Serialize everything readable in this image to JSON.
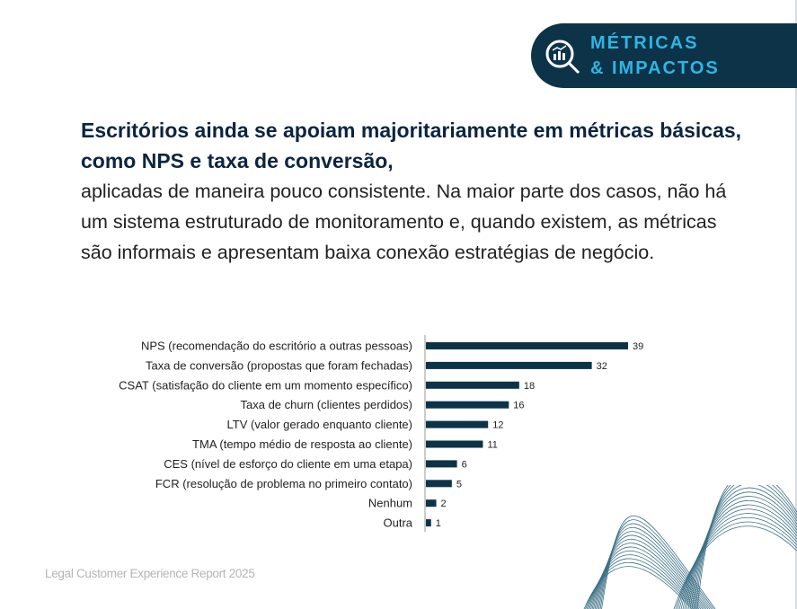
{
  "badge": {
    "line1": "MÉTRICAS",
    "line2": "& IMPACTOS",
    "icon": "magnifier-chart-icon"
  },
  "headline": {
    "bold": "Escritórios ainda se apoiam majoritariamente em métricas básicas, como NPS e taxa de conversão,",
    "regular": "aplicadas de maneira pouco consistente. Na maior parte dos casos, não há um sistema estruturado de monitoramento e, quando existem, as métricas são informais e apresentam baixa conexão estratégias de negócio."
  },
  "footer": "Legal Customer Experience Report 2025",
  "colors": {
    "bar": "#0d3349",
    "accent": "#2fb5e4"
  },
  "chart_data": {
    "type": "bar",
    "orientation": "horizontal",
    "categories": [
      "NPS (recomendação do escritório a outras pessoas)",
      "Taxa de conversão (propostas que foram fechadas)",
      "CSAT (satisfação do cliente em um momento específico)",
      "Taxa de churn (clientes perdidos)",
      "LTV (valor gerado enquanto cliente)",
      "TMA (tempo médio de resposta ao cliente)",
      "CES (nível de esforço do cliente em uma etapa)",
      "FCR (resolução de problema no primeiro contato)",
      "Nenhum",
      "Outra"
    ],
    "values": [
      39,
      32,
      18,
      16,
      12,
      11,
      6,
      5,
      2,
      1
    ],
    "xlim": [
      0,
      39
    ],
    "grid": false
  }
}
